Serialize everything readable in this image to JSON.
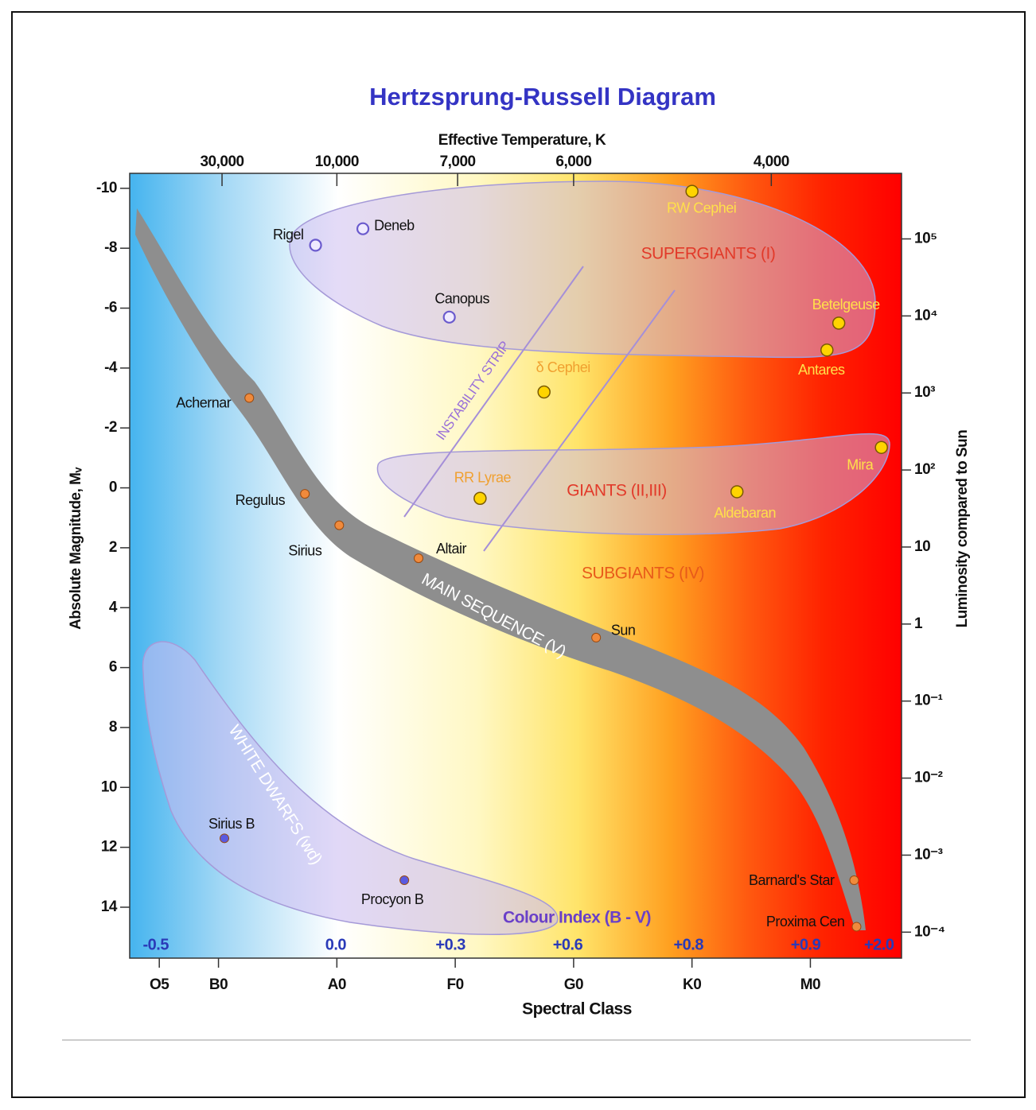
{
  "chart_data": {
    "type": "scatter",
    "title": "Hertzsprung-Russell Diagram",
    "x_label": "Spectral Class",
    "y_label": "Absolute Magnitude, Mᵥ",
    "y2_label": "Luminosity compared to Sun",
    "x2_label": "Effective Temperature, K",
    "colour_index_label": "Colour Index (B - V)",
    "xlim": [
      0.25,
      6.77
    ],
    "xticks": [
      {
        "value": 0.5,
        "label": "O5"
      },
      {
        "value": 1,
        "label": "B0"
      },
      {
        "value": 2,
        "label": "A0"
      },
      {
        "value": 3,
        "label": "F0"
      },
      {
        "value": 4,
        "label": "G0"
      },
      {
        "value": 5,
        "label": "K0"
      },
      {
        "value": 6,
        "label": "M0"
      }
    ],
    "ylim": [
      -10.5,
      15.7
    ],
    "y_inverted": true,
    "yticks": [
      -10,
      -8,
      -6,
      -4,
      -2,
      0,
      2,
      4,
      6,
      8,
      10,
      12,
      14
    ],
    "y2lim": [
      4.6e-05,
      710000
    ],
    "y2_log": true,
    "y2ticks": [
      {
        "value": 100000,
        "label": "10⁵"
      },
      {
        "value": 10000,
        "label": "10⁴"
      },
      {
        "value": 1000,
        "label": "10³"
      },
      {
        "value": 100,
        "label": "10²"
      },
      10,
      1,
      {
        "value": 0.1,
        "label": "10⁻¹"
      },
      {
        "value": 0.01,
        "label": "10⁻²"
      },
      {
        "value": 0.001,
        "label": "10⁻³"
      },
      {
        "value": 0.0001,
        "label": "10⁻⁴"
      }
    ],
    "temperature_ticks": [
      {
        "value": 30000,
        "label": "30,000",
        "at": 1.03
      },
      {
        "value": 10000,
        "label": "10,000",
        "at": 2.0
      },
      {
        "value": 7000,
        "label": "7,000",
        "at": 3.02
      },
      {
        "value": 6000,
        "label": "6,000",
        "at": 4.0
      },
      {
        "value": 4000,
        "label": "4,000",
        "at": 5.67
      }
    ],
    "colour_index": [
      {
        "value": -0.5,
        "label": "-0.5",
        "at": 0.47
      },
      {
        "value": 0,
        "label": "0.0",
        "at": 1.99
      },
      {
        "value": 0.3,
        "label": "+0.3",
        "at": 2.96
      },
      {
        "value": 0.6,
        "label": "+0.6",
        "at": 3.95
      },
      {
        "value": 0.8,
        "label": "+0.8",
        "at": 4.97
      },
      {
        "value": 0.9,
        "label": "+0.9",
        "at": 5.96
      },
      {
        "value": 2.0,
        "label": "+2.0",
        "at": 6.58
      }
    ],
    "annotations": [
      "SUPERGIANTS (I)",
      "GIANTS (II,III)",
      "SUBGIANTS (IV)",
      "MAIN SEQUENCE (V)",
      "WHITE DWARFS (wd)",
      "INSTABILITY STRIP"
    ],
    "stars": [
      {
        "name": "Rigel",
        "x": 1.82,
        "y": -8.1,
        "color": "#6a5acd",
        "marker": "open"
      },
      {
        "name": "Deneb",
        "x": 2.22,
        "y": -8.65,
        "color": "#6a5acd",
        "marker": "open"
      },
      {
        "name": "Canopus",
        "x": 2.95,
        "y": -5.7,
        "color": "#6a5acd",
        "marker": "open"
      },
      {
        "name": "RW Cephei",
        "x": 5.0,
        "y": -9.9,
        "color": "#ffd400",
        "marker": "large"
      },
      {
        "name": "Betelgeuse",
        "x": 6.24,
        "y": -5.5,
        "color": "#ffd400",
        "marker": "large"
      },
      {
        "name": "Antares",
        "x": 6.14,
        "y": -4.6,
        "color": "#ffd400",
        "marker": "large"
      },
      {
        "name": "δ Cephei",
        "x": 3.75,
        "y": -3.2,
        "color": "#ffd400",
        "marker": "large"
      },
      {
        "name": "Achernar",
        "x": 1.26,
        "y": -3.0,
        "color": "#f08a3c",
        "marker": "small"
      },
      {
        "name": "Mira",
        "x": 6.6,
        "y": -1.35,
        "color": "#ffd400",
        "marker": "large"
      },
      {
        "name": "RR Lyrae",
        "x": 3.21,
        "y": 0.35,
        "color": "#ffd400",
        "marker": "large"
      },
      {
        "name": "Aldebaran",
        "x": 5.38,
        "y": 0.13,
        "color": "#ffd400",
        "marker": "large"
      },
      {
        "name": "Regulus",
        "x": 1.73,
        "y": 0.2,
        "color": "#f08a3c",
        "marker": "small"
      },
      {
        "name": "Sirius",
        "x": 2.02,
        "y": 1.25,
        "color": "#f08a3c",
        "marker": "small"
      },
      {
        "name": "Altair",
        "x": 2.69,
        "y": 2.35,
        "color": "#f08a3c",
        "marker": "small"
      },
      {
        "name": "Sun",
        "x": 4.19,
        "y": 5.0,
        "color": "#f08a3c",
        "marker": "small"
      },
      {
        "name": "Barnard's Star",
        "x": 6.37,
        "y": 13.1,
        "color": "#f08a3c",
        "marker": "small"
      },
      {
        "name": "Proxima Cen",
        "x": 6.39,
        "y": 14.65,
        "color": "#f08a3c",
        "marker": "small"
      },
      {
        "name": "Sirius B",
        "x": 1.05,
        "y": 11.7,
        "color": "#5a5ae0",
        "marker": "small"
      },
      {
        "name": "Procyon B",
        "x": 2.57,
        "y": 13.1,
        "color": "#5a5ae0",
        "marker": "small"
      }
    ]
  }
}
